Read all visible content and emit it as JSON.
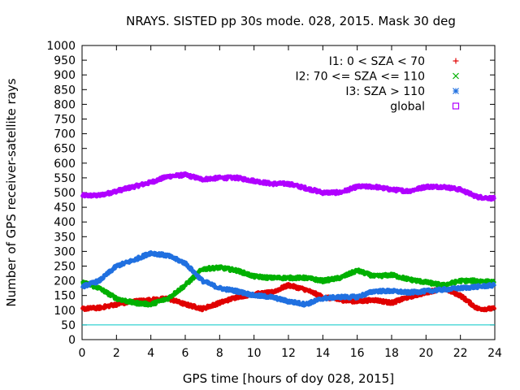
{
  "chart_data": {
    "type": "scatter",
    "title": "NRAYS. SISTED pp 30s mode. 028, 2015. Mask 30 deg",
    "xlabel": "GPS time [hours of doy 028, 2015]",
    "ylabel": "Number of GPS receiver-satellite rays",
    "xlim": [
      0,
      24
    ],
    "ylim": [
      0,
      1000
    ],
    "xticks": [
      0,
      2,
      4,
      6,
      8,
      10,
      12,
      14,
      16,
      18,
      20,
      22,
      24
    ],
    "yticks": [
      0,
      50,
      100,
      150,
      200,
      250,
      300,
      350,
      400,
      450,
      500,
      550,
      600,
      650,
      700,
      750,
      800,
      850,
      900,
      950,
      1000
    ],
    "grid": false,
    "legend_position": "top-right",
    "mask_line": {
      "value": 50,
      "color": "#00c8c8"
    },
    "series": [
      {
        "name": "I1: 0 < SZA < 70",
        "color": "#e00000",
        "marker": "+",
        "x": [
          0,
          1,
          2,
          3,
          4,
          5,
          6,
          7,
          8,
          9,
          10,
          11,
          12,
          13,
          14,
          15,
          16,
          17,
          18,
          19,
          20,
          21,
          22,
          23,
          24
        ],
        "y": [
          105,
          108,
          120,
          130,
          135,
          140,
          120,
          105,
          125,
          145,
          155,
          160,
          185,
          170,
          145,
          135,
          130,
          135,
          125,
          145,
          160,
          175,
          150,
          105,
          105
        ]
      },
      {
        "name": "I2: 70 <= SZA <= 110",
        "color": "#00b000",
        "marker": "x",
        "x": [
          0,
          1,
          2,
          3,
          4,
          5,
          6,
          7,
          8,
          9,
          10,
          11,
          12,
          13,
          14,
          15,
          16,
          17,
          18,
          19,
          20,
          21,
          22,
          23,
          24
        ],
        "y": [
          195,
          175,
          140,
          125,
          120,
          140,
          185,
          240,
          245,
          235,
          215,
          210,
          210,
          210,
          200,
          210,
          235,
          215,
          220,
          205,
          195,
          185,
          200,
          200,
          195
        ]
      },
      {
        "name": "I3: SZA > 110",
        "color": "#2070e0",
        "marker": "*",
        "x": [
          0,
          1,
          2,
          3,
          4,
          5,
          6,
          7,
          8,
          9,
          10,
          11,
          12,
          13,
          14,
          15,
          16,
          17,
          18,
          19,
          20,
          21,
          22,
          23,
          24
        ],
        "y": [
          180,
          200,
          250,
          270,
          295,
          285,
          260,
          200,
          175,
          165,
          150,
          145,
          130,
          120,
          140,
          145,
          145,
          165,
          165,
          160,
          165,
          170,
          175,
          180,
          185
        ]
      },
      {
        "name": "global",
        "color": "#b000ff",
        "marker": "square",
        "x": [
          0,
          1,
          2,
          3,
          4,
          5,
          6,
          7,
          8,
          9,
          10,
          11,
          12,
          13,
          14,
          15,
          16,
          17,
          18,
          19,
          20,
          21,
          22,
          23,
          24
        ],
        "y": [
          490,
          490,
          505,
          520,
          535,
          555,
          560,
          545,
          550,
          550,
          540,
          530,
          530,
          515,
          500,
          500,
          520,
          520,
          510,
          505,
          520,
          520,
          510,
          485,
          480
        ]
      }
    ]
  }
}
